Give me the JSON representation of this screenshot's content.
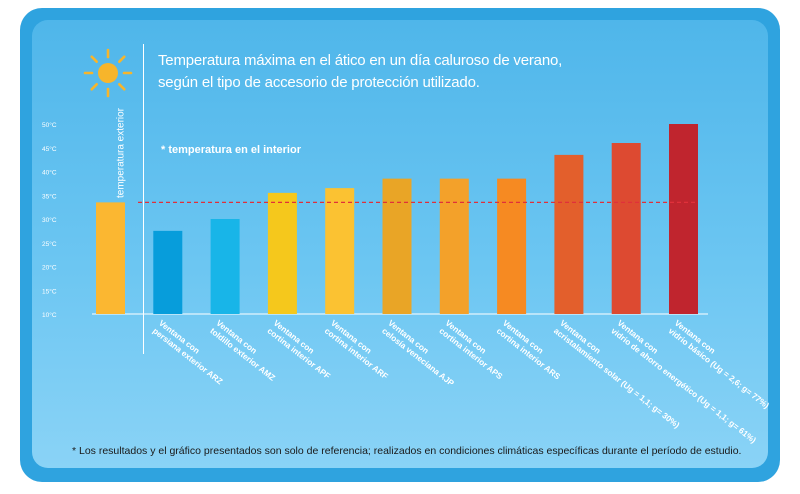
{
  "title_lines": [
    "Temperatura máxima en el ático en un día caluroso de verano,",
    "según el tipo de accesorio de protección utilizado."
  ],
  "exterior_label": "temperatura exterior",
  "interior_note": "* temperatura en el interior",
  "footnote": "* Los resultados y el gráfico presentados son solo de referencia; realizados en condiciones climáticas específicas durante el período de estudio.",
  "colors": {
    "background": "#4fb6ea",
    "frame": "#2fa3df",
    "reference_line": "#e0303a",
    "sun": "#f7b52b"
  },
  "icons": [
    "sun-icon"
  ],
  "chart_data": {
    "type": "bar",
    "title": "Temperatura máxima en el ático en un día caluroso de verano, según el tipo de accesorio de protección utilizado.",
    "ylim": [
      10,
      50
    ],
    "y_ticks": [
      "10°C",
      "15°C",
      "20°C",
      "25°C",
      "30°C",
      "35°C",
      "40°C",
      "45°C",
      "50°C"
    ],
    "y_tick_values": [
      10,
      15,
      20,
      25,
      30,
      35,
      40,
      45,
      50
    ],
    "grid": false,
    "reference_line": {
      "value": 33.5,
      "style": "dashed"
    },
    "categories": [
      "",
      "Ventana con persiana exterior ARZ",
      "Ventana con toldillo exterior AMZ",
      "Ventana con cortina interior APF",
      "Ventana con cortina interior ARF",
      "Ventana con celosía veneciana AJP",
      "Ventana con cortina interior APS",
      "Ventana con cortina interior ARS",
      "Ventana con acristalamiento solar (Ug = 1,1; g= 30%)",
      "Ventana con vidrio de ahorro energético (Ug = 1,1; g= 61%)",
      "Ventana con vidrio básico (Ug = 2,6; g= 77%)"
    ],
    "values": [
      33.5,
      27.5,
      30,
      35.5,
      36.5,
      38.5,
      38.5,
      38.5,
      43.5,
      46,
      50
    ],
    "bar_colors": [
      "#fbb731",
      "#079ddb",
      "#18b5e8",
      "#f5c81c",
      "#fbc232",
      "#e9a526",
      "#f3a12a",
      "#f68a22",
      "#e35f2c",
      "#dd4a31",
      "#c0252e"
    ]
  }
}
